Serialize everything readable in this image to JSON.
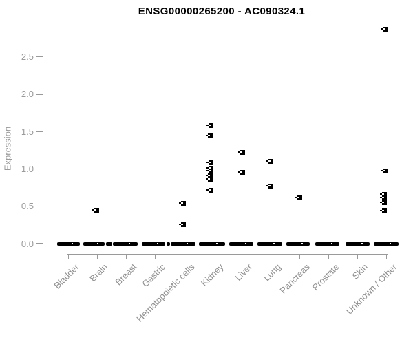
{
  "title": "ENSG00000265200 - AC090324.1",
  "colors": {
    "axis": "#9a9a9a",
    "tick_text": "#8f8f8f",
    "marker": "#000000",
    "title_text": "#000000",
    "background": "#ffffff"
  },
  "chart_data": {
    "type": "scatter",
    "title": "ENSG00000265200 - AC090324.1",
    "xlabel": "",
    "ylabel": "Expression",
    "ylim": [
      0,
      2.9
    ],
    "yticks": [
      "0.0",
      "0.5",
      "1.0",
      "1.5",
      "2.0",
      "2.5"
    ],
    "ytick_values": [
      0.0,
      0.5,
      1.0,
      1.5,
      2.0,
      2.5
    ],
    "grid": false,
    "legend": false,
    "categories": [
      "Bladder",
      "Brain",
      "Breast",
      "Gastric",
      "Hematopoietic cells",
      "Kidney",
      "Liver",
      "Lung",
      "Pancreas",
      "Prostate",
      "Skin",
      "Unknown / Other"
    ],
    "note": "every category has a dense band of samples at expression 0, drawn as a thick black dash",
    "zero_bands": [
      {
        "category": "Bladder",
        "segments": [
          [
            -16,
            33
          ],
          [
            26,
            9
          ]
        ]
      },
      {
        "category": "Brain",
        "segments": [
          [
            -20,
            31
          ],
          [
            13,
            9
          ]
        ]
      },
      {
        "category": "Breast",
        "segments": [
          [
            -19,
            36
          ]
        ]
      },
      {
        "category": "Gastric",
        "segments": [
          [
            -19,
            34
          ],
          [
            17,
            5
          ]
        ]
      },
      {
        "category": "Hematopoietic cells",
        "segments": [
          [
            -19,
            36
          ]
        ]
      },
      {
        "category": "Kidney",
        "segments": [
          [
            -20,
            38
          ]
        ]
      },
      {
        "category": "Liver",
        "segments": [
          [
            -18,
            35
          ]
        ]
      },
      {
        "category": "Lung",
        "segments": [
          [
            -19,
            36
          ]
        ]
      },
      {
        "category": "Pancreas",
        "segments": [
          [
            -19,
            34
          ]
        ]
      },
      {
        "category": "Prostate",
        "segments": [
          [
            -19,
            35
          ]
        ]
      },
      {
        "category": "Skin",
        "segments": [
          [
            -17,
            35
          ]
        ]
      },
      {
        "category": "Unknown / Other",
        "segments": [
          [
            -18,
            36
          ]
        ]
      }
    ],
    "points": [
      {
        "category": "Brain",
        "value": 0.45,
        "dx": -1
      },
      {
        "category": "Hematopoietic cells",
        "value": 0.54,
        "dx": -1
      },
      {
        "category": "Hematopoietic cells",
        "value": 0.25,
        "dx": -1
      },
      {
        "category": "Kidney",
        "value": 1.58,
        "dx": -3
      },
      {
        "category": "Kidney",
        "value": 1.44,
        "dx": -4
      },
      {
        "category": "Kidney",
        "value": 1.08,
        "dx": -3
      },
      {
        "category": "Kidney",
        "value": 1.01,
        "dx": -3
      },
      {
        "category": "Kidney",
        "value": 0.97,
        "dx": -3
      },
      {
        "category": "Kidney",
        "value": 0.91,
        "dx": -4
      },
      {
        "category": "Kidney",
        "value": 0.86,
        "dx": -4
      },
      {
        "category": "Kidney",
        "value": 0.71,
        "dx": -3
      },
      {
        "category": "Liver",
        "value": 1.22,
        "dx": 1
      },
      {
        "category": "Liver",
        "value": 0.95,
        "dx": 1
      },
      {
        "category": "Lung",
        "value": 1.1,
        "dx": 0
      },
      {
        "category": "Lung",
        "value": 0.77,
        "dx": 0
      },
      {
        "category": "Pancreas",
        "value": 0.61,
        "dx": 0
      },
      {
        "category": "Unknown / Other",
        "value": 2.87,
        "dx": -2
      },
      {
        "category": "Unknown / Other",
        "value": 0.97,
        "dx": -2
      },
      {
        "category": "Unknown / Other",
        "value": 0.66,
        "dx": -3
      },
      {
        "category": "Unknown / Other",
        "value": 0.61,
        "dx": -3
      },
      {
        "category": "Unknown / Other",
        "value": 0.55,
        "dx": -3
      },
      {
        "category": "Unknown / Other",
        "value": 0.44,
        "dx": -3
      }
    ]
  }
}
